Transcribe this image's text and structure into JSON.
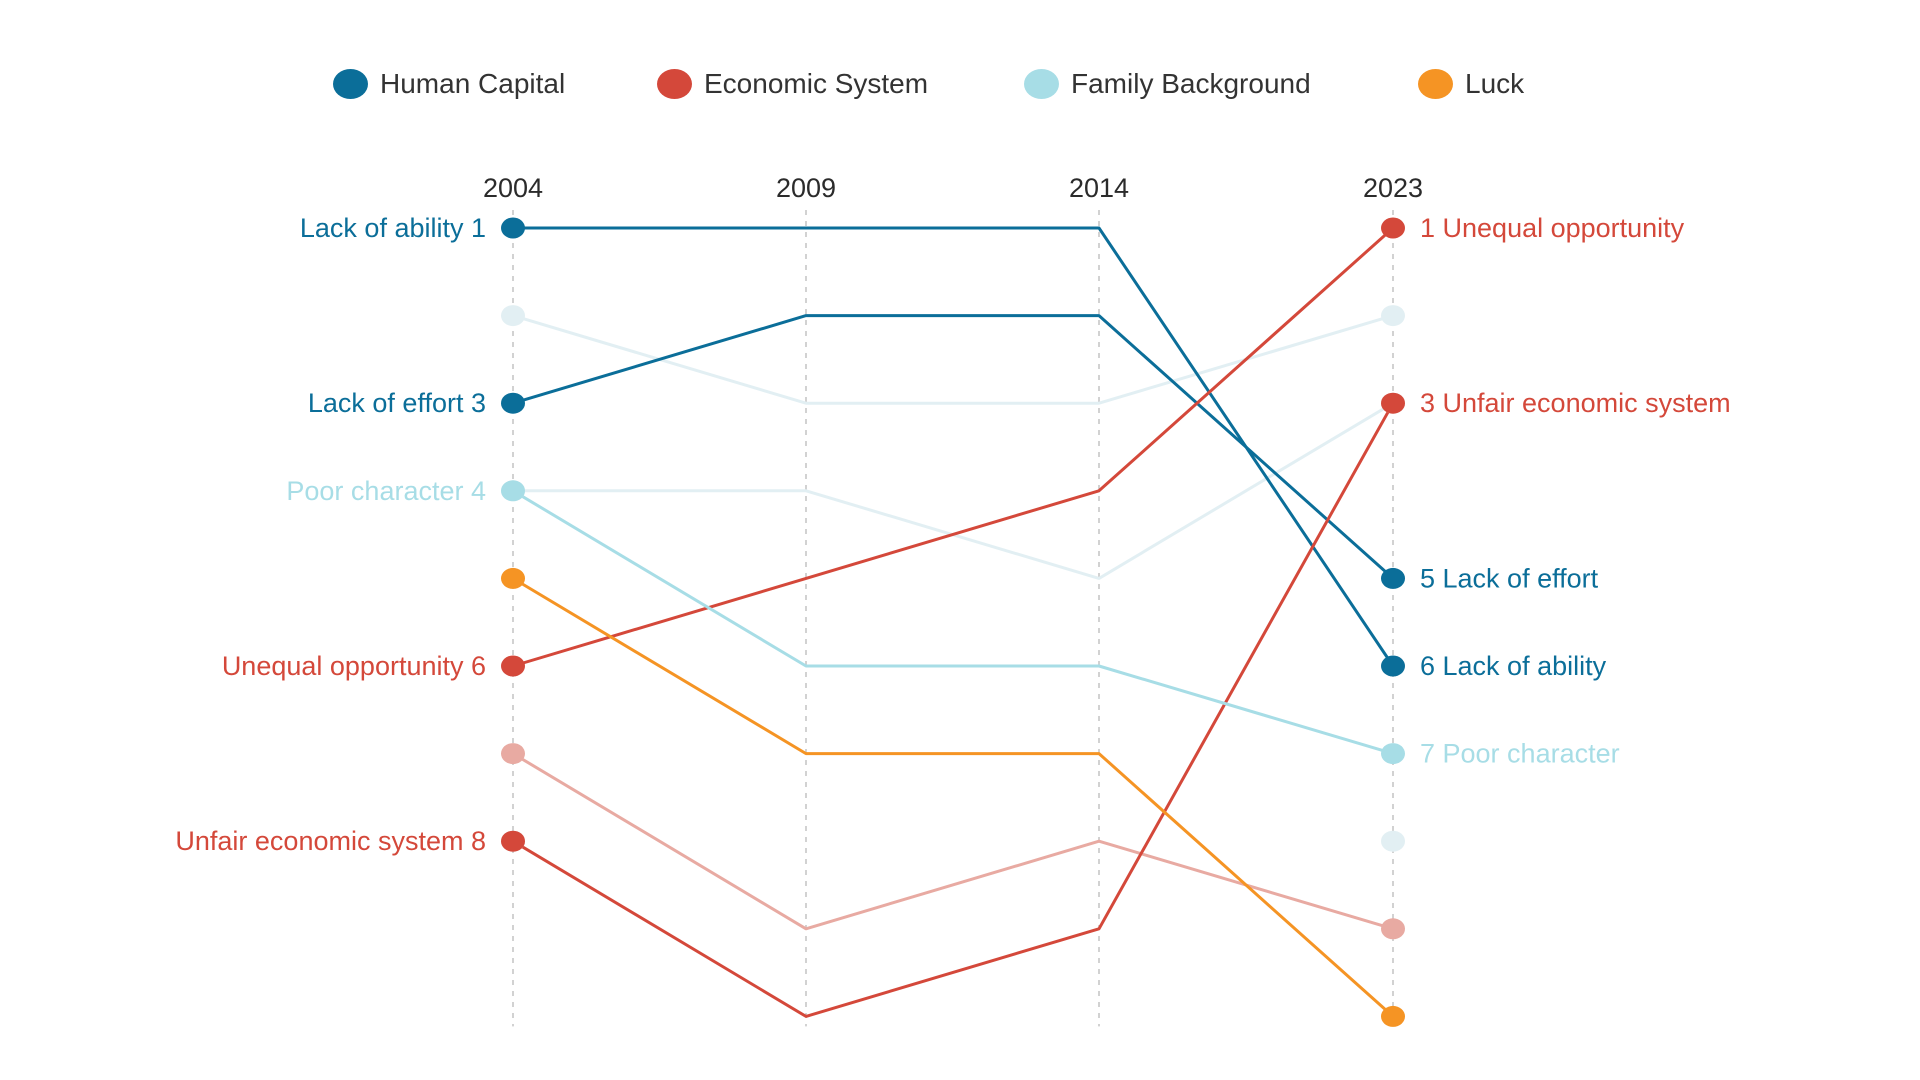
{
  "legend": [
    {
      "label": "Human Capital",
      "color": "#0b6e99"
    },
    {
      "label": "Economic System",
      "color": "#d4483a"
    },
    {
      "label": "Family Background",
      "color": "#a7dde6"
    },
    {
      "label": "Luck",
      "color": "#f59424"
    }
  ],
  "chart_data": {
    "type": "line",
    "chart_subtype": "bump-chart",
    "x": [
      "2004",
      "2009",
      "2014",
      "2023"
    ],
    "y_axis": "rank",
    "ylim": [
      1,
      10
    ],
    "grid": "vertical dashed lines at each year",
    "legend_position": "top",
    "series": [
      {
        "group": "Human Capital",
        "color": "#0b6e99",
        "ranks": [
          1,
          1,
          1,
          6
        ],
        "left_label": "Lack of ability 1",
        "right_label": "6 Lack of ability"
      },
      {
        "group": "Human Capital",
        "color": "#0b6e99",
        "ranks": [
          3,
          2,
          2,
          5
        ],
        "left_label": "Lack of effort 3",
        "right_label": "5 Lack of effort"
      },
      {
        "group": "Economic System",
        "color": "#d4483a",
        "ranks": [
          6,
          5,
          4,
          1
        ],
        "left_label": "Unequal opportunity 6",
        "right_label": "1 Unequal opportunity"
      },
      {
        "group": "Economic System",
        "color": "#d4483a",
        "ranks": [
          8,
          10,
          9,
          3
        ],
        "left_label": "Unfair economic system 8",
        "right_label": "3 Unfair economic system"
      },
      {
        "group": "Family Background",
        "color": "#a7dde6",
        "ranks": [
          4,
          6,
          6,
          7
        ],
        "left_label": "Poor character 4",
        "right_label": "7 Poor character"
      },
      {
        "group": "Family Background",
        "color": "#e2eff3",
        "ranks": [
          2,
          3,
          3,
          2
        ],
        "left_label": "",
        "right_label": ""
      },
      {
        "group": "Family Background",
        "color": "#e2eff3",
        "ranks": [
          4,
          4,
          5,
          3
        ],
        "left_label": "",
        "right_label": ""
      },
      {
        "group": "Family Background",
        "color": "#e2eff3",
        "ranks": [
          8,
          null,
          null,
          8
        ],
        "left_label": "",
        "right_label": ""
      },
      {
        "group": "Luck",
        "color": "#f59424",
        "ranks": [
          5,
          7,
          7,
          10
        ],
        "left_label": "",
        "right_label": ""
      },
      {
        "group": "Economic System",
        "color": "#e8aaa2",
        "ranks": [
          7,
          9,
          8,
          9
        ],
        "left_label": "",
        "right_label": ""
      }
    ]
  }
}
